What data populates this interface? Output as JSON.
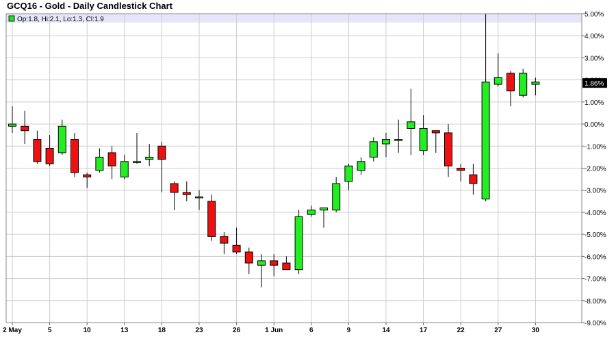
{
  "title": "GCQ16 - Gold - Daily Candlestick Chart",
  "legend": {
    "text": "Op:1.8, Hi:2.1, Lo:1.3, Cl:1.9",
    "swatch_color": "#22dd22"
  },
  "last_value_label": "1.86%",
  "colors": {
    "up": "#22ee22",
    "down": "#ee1111",
    "grid": "#cccccc",
    "highlight_band": "#e6e6fa"
  },
  "chart_data": {
    "type": "candlestick",
    "title": "GCQ16 - Gold - Daily Candlestick Chart",
    "ylim": [
      -9,
      5
    ],
    "y_ticks": [
      "5.00%",
      "4.00%",
      "3.00%",
      "2.00%",
      "1.00%",
      "0.00%",
      "-1.00%",
      "-2.00%",
      "-3.00%",
      "-4.00%",
      "-5.00%",
      "-6.00%",
      "-7.00%",
      "-8.00%",
      "-9.00%"
    ],
    "x_ticks": [
      {
        "index": 0,
        "label": "2 May"
      },
      {
        "index": 3,
        "label": "5"
      },
      {
        "index": 6,
        "label": "10"
      },
      {
        "index": 9,
        "label": "13"
      },
      {
        "index": 12,
        "label": "18"
      },
      {
        "index": 15,
        "label": "23"
      },
      {
        "index": 18,
        "label": "26"
      },
      {
        "index": 21,
        "label": "1 Jun"
      },
      {
        "index": 24,
        "label": "6"
      },
      {
        "index": 27,
        "label": "9"
      },
      {
        "index": 30,
        "label": "14"
      },
      {
        "index": 33,
        "label": "17"
      },
      {
        "index": 36,
        "label": "22"
      },
      {
        "index": 39,
        "label": "27"
      },
      {
        "index": 42,
        "label": "30"
      }
    ],
    "grid": true,
    "candles": [
      {
        "date": "2 May",
        "open": -0.1,
        "high": 0.8,
        "low": -0.4,
        "close": 0.0
      },
      {
        "date": "3 May",
        "open": -0.1,
        "high": 0.6,
        "low": -0.9,
        "close": -0.3
      },
      {
        "date": "4 May",
        "open": -0.7,
        "high": -0.3,
        "low": -1.8,
        "close": -1.7
      },
      {
        "date": "5 May",
        "open": -1.1,
        "high": -0.5,
        "low": -1.9,
        "close": -1.8
      },
      {
        "date": "6 May",
        "open": -1.3,
        "high": 0.2,
        "low": -1.4,
        "close": -0.1
      },
      {
        "date": "9 May",
        "open": -0.7,
        "high": -0.4,
        "low": -2.4,
        "close": -2.2
      },
      {
        "date": "10 May",
        "open": -2.3,
        "high": -2.2,
        "low": -2.9,
        "close": -2.4
      },
      {
        "date": "11 May",
        "open": -2.1,
        "high": -1.1,
        "low": -2.2,
        "close": -1.5
      },
      {
        "date": "12 May",
        "open": -1.3,
        "high": -1.0,
        "low": -2.5,
        "close": -1.9
      },
      {
        "date": "13 May",
        "open": -2.4,
        "high": -1.4,
        "low": -2.5,
        "close": -1.7
      },
      {
        "date": "16 May",
        "open": -1.7,
        "high": -0.4,
        "low": -1.8,
        "close": -1.7
      },
      {
        "date": "17 May",
        "open": -1.6,
        "high": -0.9,
        "low": -1.9,
        "close": -1.5
      },
      {
        "date": "18 May",
        "open": -1.0,
        "high": -0.8,
        "low": -3.1,
        "close": -1.6
      },
      {
        "date": "19 May",
        "open": -2.7,
        "high": -2.6,
        "low": -3.9,
        "close": -3.1
      },
      {
        "date": "20 May",
        "open": -3.1,
        "high": -2.6,
        "low": -3.5,
        "close": -3.2
      },
      {
        "date": "23 May",
        "open": -3.3,
        "high": -3.0,
        "low": -3.9,
        "close": -3.3
      },
      {
        "date": "24 May",
        "open": -3.5,
        "high": -3.2,
        "low": -5.3,
        "close": -5.1
      },
      {
        "date": "25 May",
        "open": -5.1,
        "high": -4.9,
        "low": -5.9,
        "close": -5.4
      },
      {
        "date": "26 May",
        "open": -5.5,
        "high": -4.7,
        "low": -5.9,
        "close": -5.8
      },
      {
        "date": "27 May",
        "open": -5.8,
        "high": -5.6,
        "low": -6.8,
        "close": -6.3
      },
      {
        "date": "31 May",
        "open": -6.4,
        "high": -5.9,
        "low": -7.4,
        "close": -6.2
      },
      {
        "date": "1 Jun",
        "open": -6.2,
        "high": -5.9,
        "low": -6.9,
        "close": -6.4
      },
      {
        "date": "2 Jun",
        "open": -6.3,
        "high": -6.0,
        "low": -6.6,
        "close": -6.6
      },
      {
        "date": "3 Jun",
        "open": -6.6,
        "high": -3.9,
        "low": -6.8,
        "close": -4.2
      },
      {
        "date": "6 Jun",
        "open": -4.1,
        "high": -3.7,
        "low": -4.2,
        "close": -3.9
      },
      {
        "date": "7 Jun",
        "open": -3.9,
        "high": -3.8,
        "low": -4.7,
        "close": -3.8
      },
      {
        "date": "8 Jun",
        "open": -3.9,
        "high": -2.4,
        "low": -4.0,
        "close": -2.7
      },
      {
        "date": "9 Jun",
        "open": -2.6,
        "high": -1.8,
        "low": -3.0,
        "close": -1.9
      },
      {
        "date": "10 Jun",
        "open": -2.1,
        "high": -1.5,
        "low": -2.3,
        "close": -1.7
      },
      {
        "date": "13 Jun",
        "open": -1.5,
        "high": -0.6,
        "low": -1.7,
        "close": -0.8
      },
      {
        "date": "14 Jun",
        "open": -0.9,
        "high": -0.4,
        "low": -1.5,
        "close": -0.7
      },
      {
        "date": "15 Jun",
        "open": -0.7,
        "high": 0.2,
        "low": -1.3,
        "close": -0.7
      },
      {
        "date": "16 Jun",
        "open": -0.2,
        "high": 1.6,
        "low": -1.4,
        "close": 0.1
      },
      {
        "date": "17 Jun",
        "open": -1.2,
        "high": 0.4,
        "low": -1.4,
        "close": -0.2
      },
      {
        "date": "20 Jun",
        "open": -0.3,
        "high": -0.3,
        "low": -1.3,
        "close": -0.4
      },
      {
        "date": "21 Jun",
        "open": -0.4,
        "high": 0.0,
        "low": -2.4,
        "close": -1.9
      },
      {
        "date": "22 Jun",
        "open": -2.0,
        "high": -1.8,
        "low": -2.6,
        "close": -2.1
      },
      {
        "date": "23 Jun",
        "open": -2.3,
        "high": -1.8,
        "low": -3.2,
        "close": -2.7
      },
      {
        "date": "24 Jun",
        "open": -3.4,
        "high": 5.0,
        "low": -3.5,
        "close": 1.9
      },
      {
        "date": "27 Jun",
        "open": 1.8,
        "high": 3.2,
        "low": 1.7,
        "close": 2.1
      },
      {
        "date": "28 Jun",
        "open": 2.3,
        "high": 2.4,
        "low": 0.8,
        "close": 1.5
      },
      {
        "date": "29 Jun",
        "open": 1.3,
        "high": 2.5,
        "low": 1.2,
        "close": 2.3
      },
      {
        "date": "30 Jun",
        "open": 1.8,
        "high": 2.1,
        "low": 1.3,
        "close": 1.9
      }
    ],
    "highlight_band": [
      4.6,
      5.0
    ],
    "last_value": 1.86
  }
}
